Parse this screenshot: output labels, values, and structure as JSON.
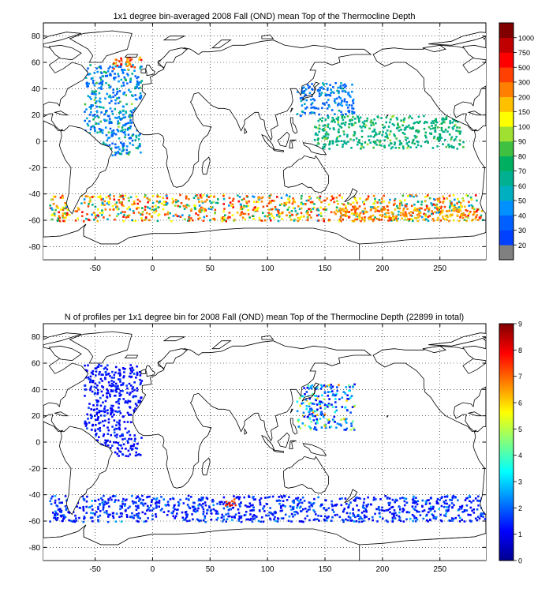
{
  "charts": [
    {
      "title": "1x1 degree bin-averaged 2008 Fall (OND) mean Top of the Thermocline Depth",
      "xlim": [
        -95,
        290
      ],
      "ylim": [
        -90,
        90
      ],
      "xticks": [
        -50,
        0,
        50,
        100,
        150,
        200,
        250
      ],
      "yticks": [
        -80,
        -60,
        -40,
        -20,
        0,
        20,
        40,
        60,
        80
      ],
      "colorbar": {
        "labels": [
          "20",
          "30",
          "40",
          "50",
          "60",
          "70",
          "80",
          "90",
          "100",
          "150",
          "200",
          "300",
          "500",
          "750",
          "1000"
        ],
        "colors": [
          "#808080",
          "#0040ff",
          "#0060ff",
          "#0090ff",
          "#00b0c0",
          "#00b090",
          "#00b060",
          "#40c040",
          "#a0e030",
          "#ffff00",
          "#ffc000",
          "#ff8000",
          "#ff4000",
          "#ff0000",
          "#c00000",
          "#800000"
        ]
      }
    },
    {
      "title": "N of profiles per 1x1 degree bin for 2008 Fall (OND) mean Top of the Thermocline Depth  (22899 in total)",
      "xlim": [
        -95,
        290
      ],
      "ylim": [
        -90,
        90
      ],
      "xticks": [
        -50,
        0,
        50,
        100,
        150,
        200,
        250
      ],
      "yticks": [
        -80,
        -60,
        -40,
        -20,
        0,
        20,
        40,
        60,
        80
      ],
      "colorbar": {
        "labels": [
          "0",
          "1",
          "2",
          "3",
          "4",
          "5",
          "6",
          "7",
          "8",
          "9"
        ],
        "range": [
          0,
          9
        ]
      }
    }
  ],
  "chart_data": [
    {
      "type": "heatmap",
      "title": "1x1 degree bin-averaged 2008 Fall (OND) mean Top of the Thermocline Depth",
      "xlim": [
        -95,
        290
      ],
      "ylim": [
        -90,
        90
      ],
      "grid": true,
      "colorbar_ticks": [
        20,
        30,
        40,
        50,
        60,
        70,
        80,
        90,
        100,
        150,
        200,
        300,
        500,
        750,
        1000
      ],
      "regions": [
        {
          "lon": [
            -60,
            -10
          ],
          "lat": [
            -10,
            60
          ],
          "depth_range": [
            30,
            100
          ]
        },
        {
          "lon": [
            -35,
            -10
          ],
          "lat": [
            55,
            65
          ],
          "depth_range": [
            150,
            750
          ]
        },
        {
          "lon": [
            125,
            175
          ],
          "lat": [
            20,
            45
          ],
          "depth_range": [
            30,
            70
          ]
        },
        {
          "lon": [
            140,
            270
          ],
          "lat": [
            -5,
            20
          ],
          "depth_range": [
            60,
            100
          ]
        },
        {
          "lon": [
            -90,
            290
          ],
          "lat": [
            -60,
            -40
          ],
          "depth_range": [
            40,
            750
          ]
        },
        {
          "lon": [
            160,
            280
          ],
          "lat": [
            -60,
            -50
          ],
          "depth_range": [
            150,
            500
          ]
        }
      ]
    },
    {
      "type": "heatmap",
      "title": "N of profiles per 1x1 degree bin for 2008 Fall (OND) mean Top of the Thermocline Depth  (22899 in total)",
      "xlim": [
        -95,
        290
      ],
      "ylim": [
        -90,
        90
      ],
      "grid": true,
      "total_profiles": 22899,
      "colorbar_range": [
        0,
        9
      ],
      "regions": [
        {
          "lon": [
            -60,
            -10
          ],
          "lat": [
            -10,
            60
          ],
          "count_range": [
            1,
            2
          ]
        },
        {
          "lon": [
            125,
            175
          ],
          "lat": [
            10,
            45
          ],
          "count_range": [
            1,
            8
          ]
        },
        {
          "lon": [
            -90,
            290
          ],
          "lat": [
            -60,
            -40
          ],
          "count_range": [
            1,
            3
          ]
        },
        {
          "lon": [
            60,
            75
          ],
          "lat": [
            -48,
            -42
          ],
          "count_range": [
            7,
            9
          ]
        }
      ]
    }
  ]
}
